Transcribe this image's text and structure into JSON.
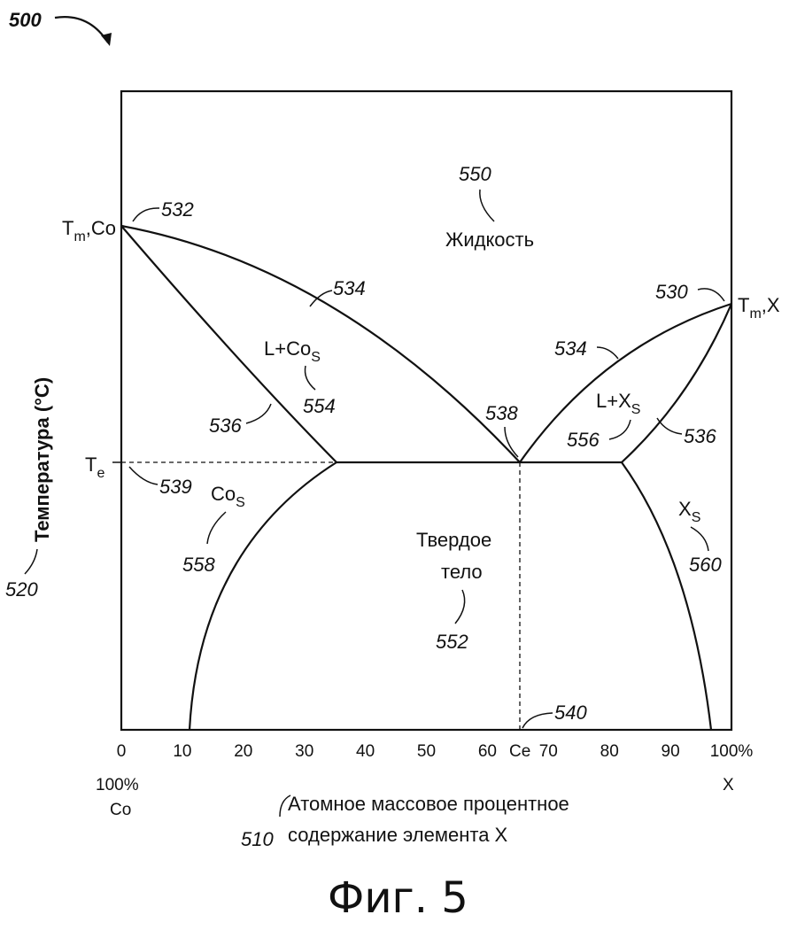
{
  "figure_ref": "500",
  "caption": "Фиг. 5",
  "axis": {
    "y_title": "Температура (°С)",
    "y_ref": "520",
    "x_title_line1": "Атомное массовое процентное",
    "x_title_line2": "содержание элемента X",
    "x_ref": "510",
    "left_pct": "100%",
    "left_elem": "Co",
    "right_pct": "100%",
    "right_elem": "X",
    "ce_label": "Ce",
    "te_label_main": "T",
    "te_label_sub": "e",
    "tmco_main": "T",
    "tmco_sub": "m",
    "tmco_tail": ",Co",
    "tmx_main": "T",
    "tmx_sub": "m",
    "tmx_tail": ",X"
  },
  "chart_data": {
    "type": "line",
    "x_ticks": [
      "0",
      "10",
      "20",
      "30",
      "40",
      "50",
      "60",
      "70",
      "80",
      "90",
      "100%"
    ],
    "xlim": [
      0,
      100
    ]
  },
  "regions": {
    "liquid": {
      "label": "Жидкость",
      "ref": "550"
    },
    "l_co": {
      "label_main": "L+Co",
      "label_sub": "S",
      "ref": "554"
    },
    "l_x": {
      "label_main": "L+X",
      "label_sub": "S",
      "ref": "556"
    },
    "solid": {
      "label_line1": "Твердое",
      "label_line2": "тело",
      "ref": "552"
    },
    "co_s": {
      "label_main": "Co",
      "label_sub": "S",
      "ref": "558"
    },
    "x_s": {
      "label_main": "X",
      "label_sub": "S",
      "ref": "560"
    }
  },
  "refs": {
    "tm_co": "532",
    "tm_x": "530",
    "liquidus_left": "534",
    "liquidus_right": "534",
    "solidus_left": "536",
    "solidus_right": "536",
    "eutectic_point": "538",
    "eutectic_line": "539",
    "ce_point": "540"
  }
}
